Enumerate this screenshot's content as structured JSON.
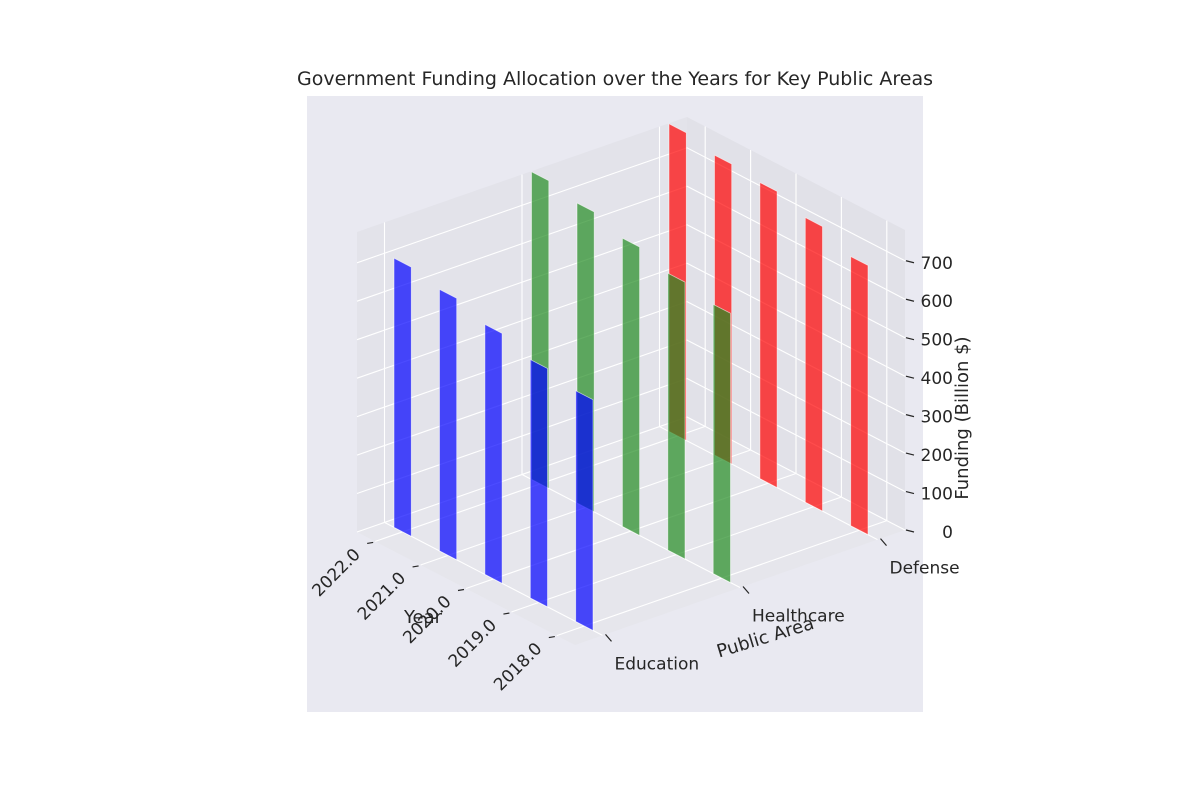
{
  "chart_data": {
    "type": "bar3d",
    "title": "Government Funding Allocation over the Years for Key Public Areas",
    "xlabel": "Year",
    "ylabel": "Public Area",
    "zlabel": "Funding (Billion $)",
    "years": [
      "2018.0",
      "2019.0",
      "2020.0",
      "2021.0",
      "2022.0"
    ],
    "year_values": [
      2018,
      2019,
      2020,
      2021,
      2022
    ],
    "areas": [
      "Education",
      "Healthcare",
      "Defense"
    ],
    "z_ticks": [
      "0",
      "100",
      "200",
      "300",
      "400",
      "500",
      "600",
      "700"
    ],
    "zlim": [
      0,
      780
    ],
    "grid": true,
    "background_color": "#e9e9f1",
    "series": [
      {
        "color": "#0000ff",
        "values": [
          600,
          620,
          650,
          680,
          700
        ]
      },
      {
        "color": "#228b22",
        "values": [
          700,
          720,
          750,
          780,
          800
        ]
      },
      {
        "color": "#ff0000",
        "values": [
          700,
          740,
          770,
          780,
          800
        ]
      }
    ]
  }
}
